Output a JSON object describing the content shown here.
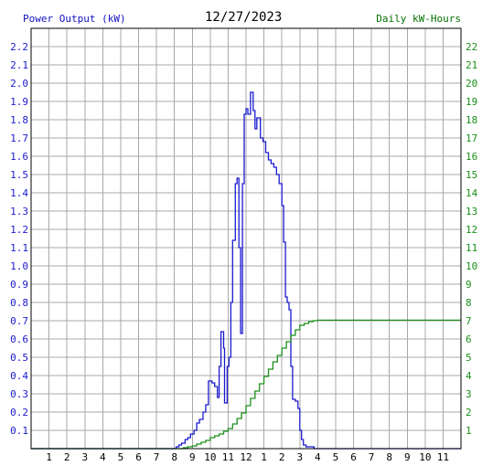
{
  "chart_data": {
    "type": "line",
    "title": "12/27/2023",
    "y_left_label": "Power Output (kW)",
    "y_right_label": "Daily kW-Hours",
    "y_left_range": [
      0,
      2.3
    ],
    "y_left_ticks": [
      "0.1",
      "0.2",
      "0.3",
      "0.4",
      "0.5",
      "0.6",
      "0.7",
      "0.8",
      "0.9",
      "1.0",
      "1.1",
      "1.2",
      "1.3",
      "1.4",
      "1.5",
      "1.6",
      "1.7",
      "1.8",
      "1.9",
      "2.0",
      "2.1",
      "2.2"
    ],
    "y_right_range": [
      0,
      23
    ],
    "y_right_ticks": [
      "1",
      "2",
      "3",
      "4",
      "5",
      "6",
      "7",
      "8",
      "9",
      "10",
      "11",
      "12",
      "13",
      "14",
      "15",
      "16",
      "17",
      "18",
      "19",
      "20",
      "21",
      "22"
    ],
    "x_range": [
      0,
      24
    ],
    "x_tick_labels": [
      "1",
      "2",
      "3",
      "4",
      "5",
      "6",
      "7",
      "8",
      "9",
      "10",
      "11",
      "12",
      "1",
      "2",
      "3",
      "4",
      "5",
      "6",
      "7",
      "8",
      "9",
      "10",
      "11"
    ],
    "grid": true,
    "colors": {
      "power": "#1a1ad0",
      "energy": "#1a8f1a",
      "grid": "#a8a8a8",
      "axis": "#000000"
    },
    "series": [
      {
        "name": "Power Output (kW)",
        "axis": "left",
        "step": true,
        "points": [
          [
            0,
            0
          ],
          [
            8.0,
            0
          ],
          [
            8.1,
            0.01
          ],
          [
            8.25,
            0.02
          ],
          [
            8.4,
            0.03
          ],
          [
            8.6,
            0.05
          ],
          [
            8.75,
            0.06
          ],
          [
            8.9,
            0.08
          ],
          [
            9.1,
            0.1
          ],
          [
            9.25,
            0.14
          ],
          [
            9.4,
            0.16
          ],
          [
            9.6,
            0.2
          ],
          [
            9.75,
            0.24
          ],
          [
            9.9,
            0.37
          ],
          [
            10.1,
            0.36
          ],
          [
            10.25,
            0.34
          ],
          [
            10.4,
            0.28
          ],
          [
            10.5,
            0.45
          ],
          [
            10.6,
            0.64
          ],
          [
            10.75,
            0.55
          ],
          [
            10.8,
            0.25
          ],
          [
            10.95,
            0.45
          ],
          [
            11.05,
            0.5
          ],
          [
            11.15,
            0.8
          ],
          [
            11.25,
            1.14
          ],
          [
            11.4,
            1.45
          ],
          [
            11.5,
            1.48
          ],
          [
            11.6,
            1.1
          ],
          [
            11.7,
            0.63
          ],
          [
            11.8,
            1.45
          ],
          [
            11.9,
            1.83
          ],
          [
            12.0,
            1.86
          ],
          [
            12.1,
            1.83
          ],
          [
            12.25,
            1.95
          ],
          [
            12.4,
            1.85
          ],
          [
            12.5,
            1.75
          ],
          [
            12.6,
            1.81
          ],
          [
            12.8,
            1.7
          ],
          [
            12.95,
            1.68
          ],
          [
            13.1,
            1.62
          ],
          [
            13.25,
            1.58
          ],
          [
            13.4,
            1.56
          ],
          [
            13.55,
            1.54
          ],
          [
            13.7,
            1.5
          ],
          [
            13.85,
            1.45
          ],
          [
            14.0,
            1.33
          ],
          [
            14.1,
            1.13
          ],
          [
            14.2,
            0.83
          ],
          [
            14.3,
            0.8
          ],
          [
            14.4,
            0.76
          ],
          [
            14.5,
            0.45
          ],
          [
            14.6,
            0.27
          ],
          [
            14.75,
            0.26
          ],
          [
            14.9,
            0.22
          ],
          [
            15.0,
            0.1
          ],
          [
            15.1,
            0.05
          ],
          [
            15.2,
            0.02
          ],
          [
            15.35,
            0.01
          ],
          [
            15.8,
            0.0
          ],
          [
            24,
            0
          ]
        ]
      },
      {
        "name": "Daily kW-Hours",
        "axis": "right",
        "step": true,
        "points": [
          [
            0,
            0
          ],
          [
            8.0,
            0
          ],
          [
            8.5,
            0.05
          ],
          [
            8.75,
            0.1
          ],
          [
            9.0,
            0.15
          ],
          [
            9.25,
            0.25
          ],
          [
            9.5,
            0.35
          ],
          [
            9.75,
            0.45
          ],
          [
            10.0,
            0.6
          ],
          [
            10.25,
            0.7
          ],
          [
            10.5,
            0.8
          ],
          [
            10.75,
            0.95
          ],
          [
            11.0,
            1.1
          ],
          [
            11.25,
            1.35
          ],
          [
            11.5,
            1.65
          ],
          [
            11.75,
            1.95
          ],
          [
            12.0,
            2.35
          ],
          [
            12.25,
            2.75
          ],
          [
            12.5,
            3.15
          ],
          [
            12.75,
            3.55
          ],
          [
            13.0,
            3.95
          ],
          [
            13.25,
            4.35
          ],
          [
            13.5,
            4.75
          ],
          [
            13.75,
            5.1
          ],
          [
            14.0,
            5.5
          ],
          [
            14.25,
            5.85
          ],
          [
            14.5,
            6.2
          ],
          [
            14.75,
            6.5
          ],
          [
            15.0,
            6.75
          ],
          [
            15.25,
            6.85
          ],
          [
            15.5,
            6.95
          ],
          [
            15.75,
            7.0
          ],
          [
            16.0,
            7.03
          ],
          [
            24,
            7.03
          ]
        ]
      }
    ]
  }
}
